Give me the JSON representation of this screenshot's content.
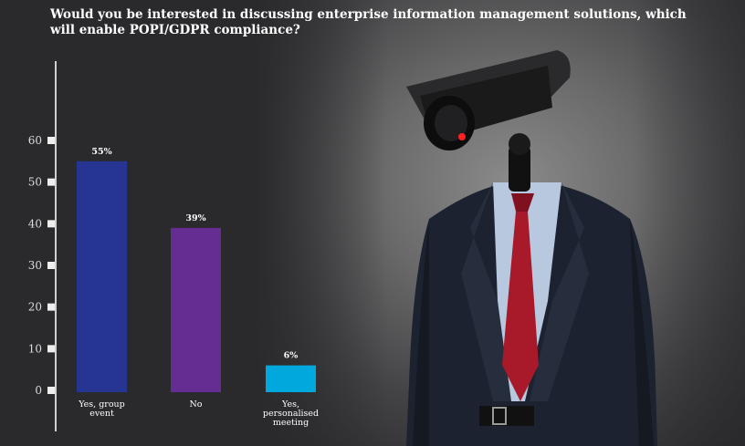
{
  "chart_data": {
    "type": "bar",
    "title": "Would you be interested in discussing enterprise information management solutions, which will enable POPI/GDPR compliance?",
    "categories": [
      "Yes, group event",
      "No",
      "Yes, personalised meeting"
    ],
    "category_lines": [
      [
        "Yes, group",
        "event"
      ],
      [
        "No"
      ],
      [
        "Yes,",
        "personalised",
        "meeting"
      ]
    ],
    "values": [
      55,
      39,
      6
    ],
    "data_labels": [
      "55%",
      "39%",
      "6%"
    ],
    "colors": [
      "#263591",
      "#652d91",
      "#00a8de"
    ],
    "ylim": [
      0,
      60
    ],
    "yticks": [
      0,
      10,
      20,
      30,
      40,
      50,
      60
    ],
    "grid": false,
    "xlabel": "",
    "ylabel": ""
  }
}
